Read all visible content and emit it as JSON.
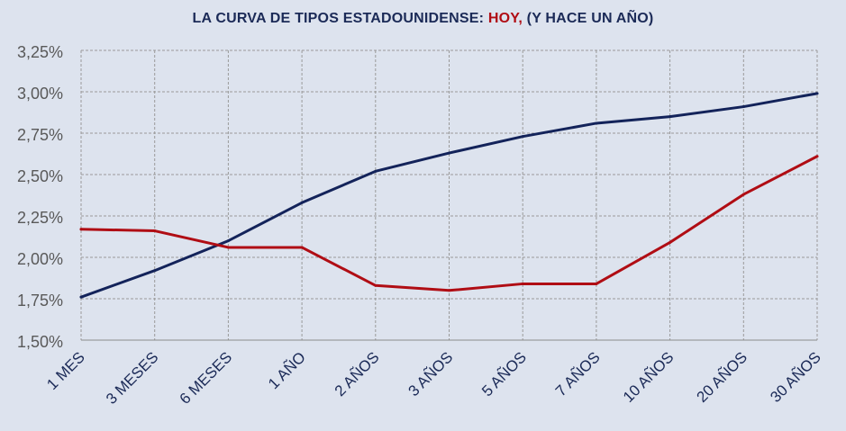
{
  "title": {
    "prefix": "LA CURVA DE TIPOS ESTADOUNIDENSE: ",
    "highlight": "HOY,",
    "suffix": " (Y HACE UN AÑO)"
  },
  "chart_data": {
    "type": "line",
    "categories": [
      "1 MES",
      "3 MESES",
      "6 MESES",
      "1 AÑO",
      "2 AÑOS",
      "3 AÑOS",
      "5 AÑOS",
      "7 AÑOS",
      "10 AÑOS",
      "20 AÑOS",
      "30 AÑOS"
    ],
    "series": [
      {
        "color": "#13235a",
        "values": [
          1.76,
          1.92,
          2.1,
          2.33,
          2.52,
          2.63,
          2.73,
          2.81,
          2.85,
          2.91,
          2.99
        ]
      },
      {
        "color": "#b00d14",
        "values": [
          2.17,
          2.16,
          2.06,
          2.06,
          1.83,
          1.8,
          1.84,
          1.84,
          2.09,
          2.38,
          2.61
        ]
      }
    ],
    "ylim": [
      1.5,
      3.25
    ],
    "yticks": [
      "1,50%",
      "1,75%",
      "2,00%",
      "2,25%",
      "2,50%",
      "2,75%",
      "3,00%",
      "3,25%"
    ],
    "grid": true,
    "xlabel": "",
    "ylabel": ""
  }
}
